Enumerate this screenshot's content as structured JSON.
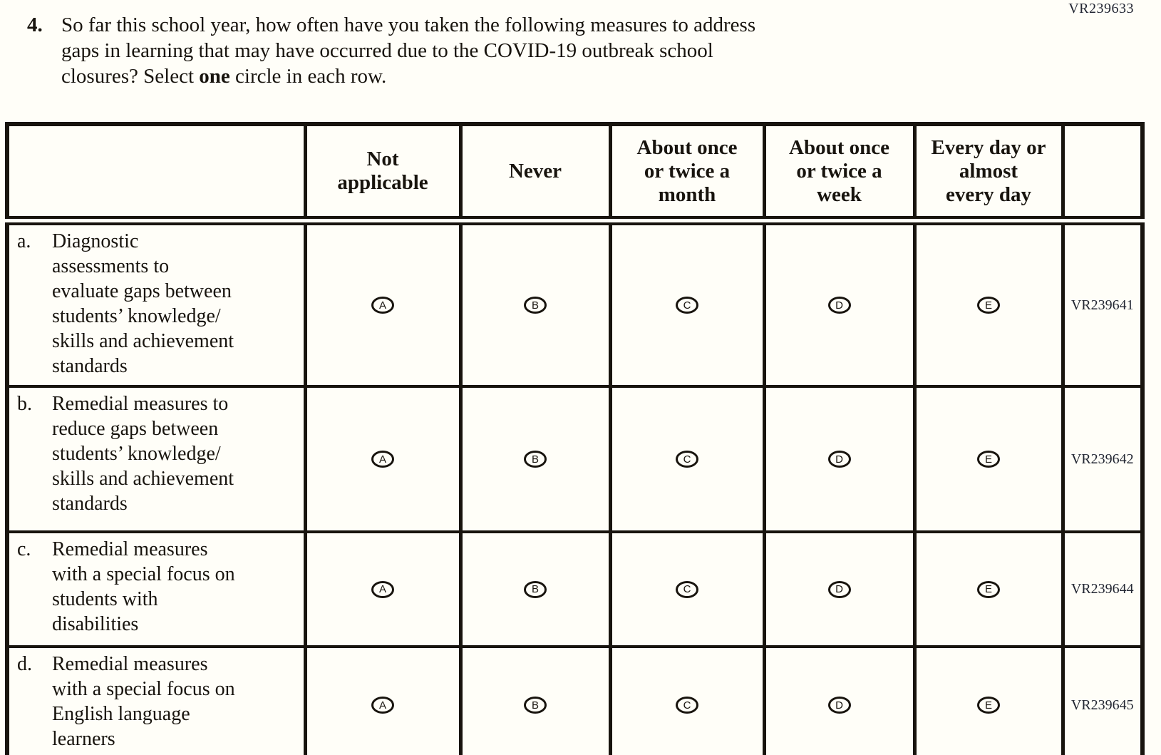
{
  "page": {
    "top_right_code": "VR239633"
  },
  "question": {
    "number": "4.",
    "text_part1": "So far this school year, how often have you taken the following measures to address\ngaps in learning that may have occurred due to the COVID-19 outbreak school\nclosures? Select ",
    "bold_word": "one",
    "text_part2": " circle in each row."
  },
  "table": {
    "column_headers": [
      "Not\napplicable",
      "Never",
      "About once\nor twice a\nmonth",
      "About once\nor twice a\nweek",
      "Every day or\nalmost\nevery day"
    ],
    "options": [
      "A",
      "B",
      "C",
      "D",
      "E"
    ],
    "rows": [
      {
        "letter": "a.",
        "text": "Diagnostic\nassessments to\nevaluate gaps between\nstudents’ knowledge/\nskills and achievement\nstandards",
        "code": "VR239641"
      },
      {
        "letter": "b.",
        "text": "Remedial measures to\nreduce gaps between\nstudents’ knowledge/\nskills and achievement\nstandards",
        "code": "VR239642"
      },
      {
        "letter": "c.",
        "text": "Remedial measures\nwith a special focus on\nstudents with\ndisabilities",
        "code": "VR239644"
      },
      {
        "letter": "d.",
        "text": "Remedial measures\nwith a special focus on\nEnglish language\nlearners",
        "code": "VR239645"
      }
    ]
  },
  "colors": {
    "text": "#18140e",
    "border": "#18140e",
    "background": "#fffef8",
    "code_text": "#232733"
  }
}
